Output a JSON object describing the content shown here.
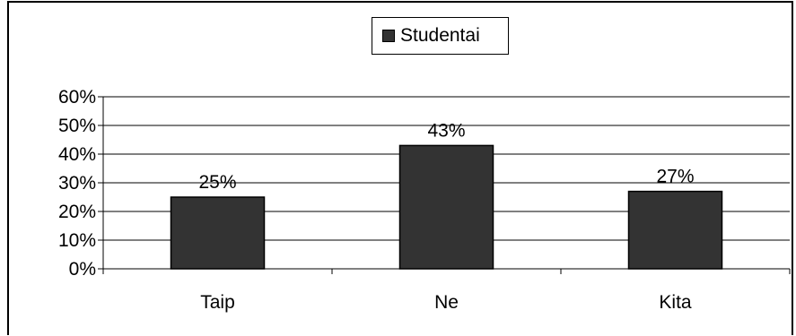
{
  "chart_data": {
    "type": "bar",
    "categories": [
      "Taip",
      "Ne",
      "Kita"
    ],
    "series": [
      {
        "name": "Studentai",
        "values": [
          25,
          43,
          27
        ],
        "color": "#333333"
      }
    ],
    "data_labels": [
      "25%",
      "43%",
      "27%"
    ],
    "y_ticks": [
      "0%",
      "10%",
      "20%",
      "30%",
      "40%",
      "50%",
      "60%"
    ],
    "ylim": [
      0,
      60
    ],
    "y_tick_step": 10,
    "grid": true,
    "legend_position": "top"
  },
  "legend": {
    "label": "Studentai"
  }
}
